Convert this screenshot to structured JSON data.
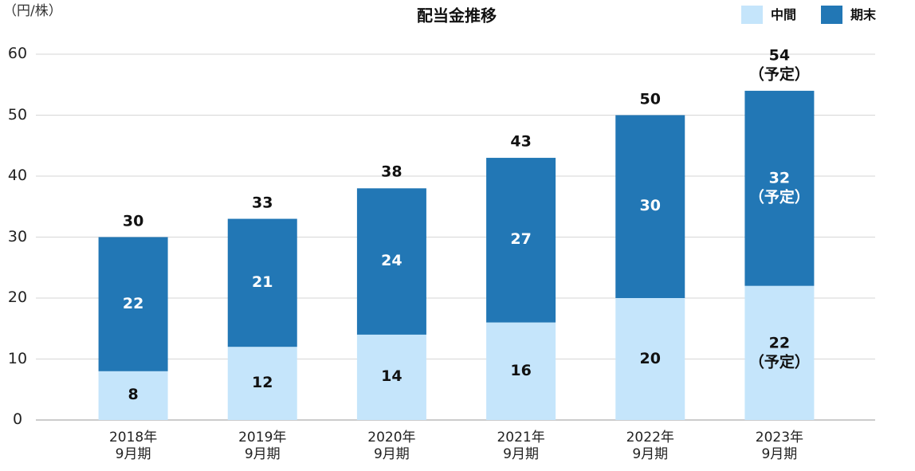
{
  "chart_data": {
    "type": "stacked-bar",
    "title": "配当金推移",
    "y_unit": "（円/株）",
    "categories": [
      "2018年\n9月期",
      "2019年\n9月期",
      "2020年\n9月期",
      "2021年\n9月期",
      "2022年\n9月期",
      "2023年\n9月期"
    ],
    "series": [
      {
        "name": "中間",
        "color": "#c5e5fb",
        "values": [
          8,
          12,
          14,
          16,
          20,
          22
        ],
        "value_labels": [
          "8",
          "12",
          "14",
          "16",
          "20",
          "22\n（予定）"
        ]
      },
      {
        "name": "期末",
        "color": "#2277b5",
        "values": [
          22,
          21,
          24,
          27,
          30,
          32
        ],
        "value_labels": [
          "22",
          "21",
          "24",
          "27",
          "30",
          "32\n（予定）"
        ]
      }
    ],
    "totals": [
      30,
      33,
      38,
      43,
      50,
      54
    ],
    "total_labels": [
      "30",
      "33",
      "38",
      "43",
      "50",
      "54\n（予定）"
    ],
    "ylim": [
      0,
      60
    ],
    "yticks": [
      0,
      10,
      20,
      30,
      40,
      50,
      60
    ],
    "grid": true,
    "legend": "top-right"
  }
}
